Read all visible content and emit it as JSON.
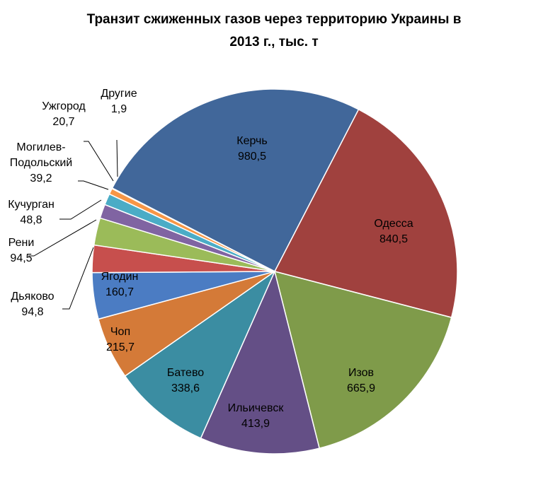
{
  "chart_data": {
    "type": "pie",
    "title_lines": [
      "Транзит сжиженных газов через территорию Украины в",
      "2013 г., тыс. т"
    ],
    "slices": [
      {
        "name": "Керчь",
        "value": 980.5,
        "value_label": "980,5",
        "color": "#41679A"
      },
      {
        "name": "Одесса",
        "value": 840.5,
        "value_label": "840,5",
        "color": "#A0413E"
      },
      {
        "name": "Изов",
        "value": 665.9,
        "value_label": "665,9",
        "color": "#7F9B4A"
      },
      {
        "name": "Ильичевск",
        "value": 413.9,
        "value_label": "413,9",
        "color": "#644F86"
      },
      {
        "name": "Батево",
        "value": 338.6,
        "value_label": "338,6",
        "color": "#3B8DA2"
      },
      {
        "name": "Чоп",
        "value": 215.7,
        "value_label": "215,7",
        "color": "#D47A38"
      },
      {
        "name": "Ягодин",
        "value": 160.7,
        "value_label": "160,7",
        "color": "#4B7CC3"
      },
      {
        "name": "Дьяково",
        "value": 94.8,
        "value_label": "94,8",
        "color": "#C74F4D"
      },
      {
        "name": "Рени",
        "value": 94.5,
        "value_label": "94,5",
        "color": "#9BBB59"
      },
      {
        "name": "Кучурган",
        "value": 48.8,
        "value_label": "48,8",
        "color": "#8064A2"
      },
      {
        "name": "Могилев-Подольский",
        "value": 39.2,
        "value_label": "39,2",
        "color": "#4BACC6"
      },
      {
        "name": "Ужгород",
        "value": 20.7,
        "value_label": "20,7",
        "color": "#F79646"
      },
      {
        "name": "Другие",
        "value": 1.9,
        "value_label": "1,9",
        "color": "#2C4D75"
      }
    ]
  }
}
